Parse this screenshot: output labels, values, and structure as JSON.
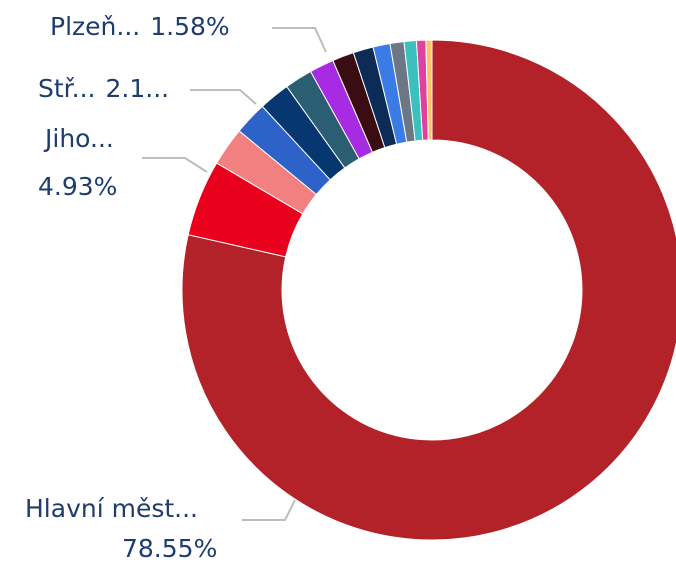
{
  "chart_data": {
    "type": "pie",
    "donut": true,
    "categories": [
      "Hlavní měst...",
      "Jiho...",
      null,
      "Stř...",
      null,
      null,
      "Plzeň...",
      null,
      null,
      null,
      null,
      null,
      null,
      null
    ],
    "values": [
      78.55,
      4.93,
      2.5,
      2.15,
      2.0,
      1.8,
      1.58,
      1.4,
      1.3,
      1.1,
      0.9,
      0.8,
      0.6,
      0.39
    ],
    "value_labels": [
      "78.55%",
      "4.93%",
      null,
      "2.1...",
      null,
      null,
      "1.58%",
      null,
      null,
      null,
      null,
      null,
      null,
      null
    ],
    "colors": [
      "#b22228",
      "#e8001c",
      "#f28080",
      "#2d63c8",
      "#073770",
      "#2b5d73",
      "#a62be2",
      "#3a0d12",
      "#0c2b57",
      "#3b7be6",
      "#6b7784",
      "#3bbfbf",
      "#e040a0",
      "#f5c76a"
    ]
  }
}
